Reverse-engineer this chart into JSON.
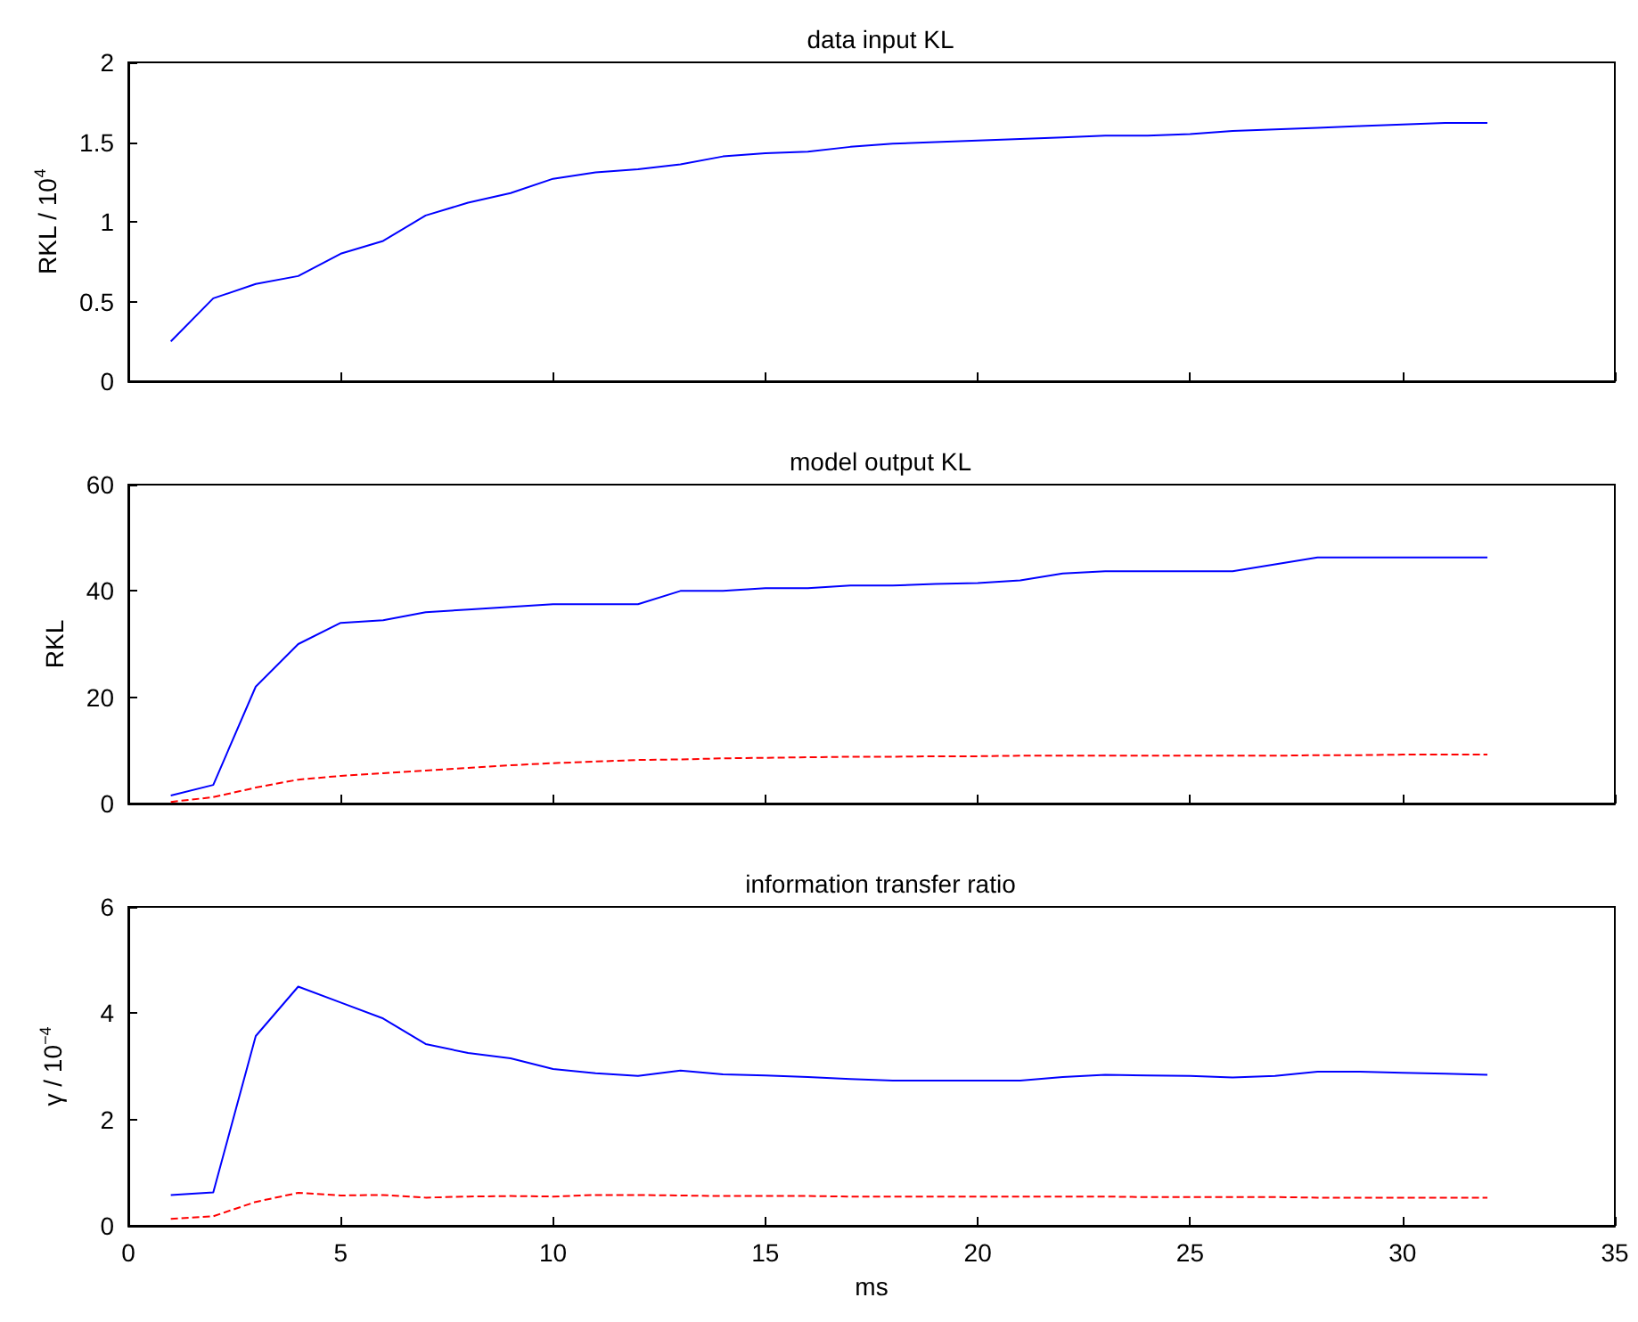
{
  "chart_data": [
    {
      "type": "line",
      "title": "data input KL",
      "ylabel": "RKL / 10$^{4}$",
      "xlim": [
        0,
        35
      ],
      "xticks": [
        0,
        5,
        10,
        15,
        20,
        25,
        30,
        35
      ],
      "ylim": [
        0,
        2
      ],
      "yticks": [
        0,
        0.5,
        1,
        1.5,
        2
      ],
      "tick_labels": "y",
      "grid": false,
      "marker": "none",
      "x": [
        1,
        2,
        3,
        4,
        5,
        6,
        7,
        8,
        9,
        10,
        11,
        12,
        13,
        14,
        15,
        16,
        17,
        18,
        19,
        20,
        21,
        22,
        23,
        24,
        25,
        26,
        27,
        28,
        29,
        30,
        31,
        32
      ],
      "series": [
        {
          "color": "#0000ff",
          "line_style": "solid",
          "values": [
            0.25,
            0.52,
            0.61,
            0.66,
            0.8,
            0.88,
            1.04,
            1.12,
            1.18,
            1.27,
            1.31,
            1.33,
            1.36,
            1.41,
            1.43,
            1.44,
            1.47,
            1.49,
            1.5,
            1.51,
            1.52,
            1.53,
            1.54,
            1.54,
            1.55,
            1.57,
            1.58,
            1.59,
            1.6,
            1.61,
            1.62,
            1.62
          ]
        }
      ]
    },
    {
      "type": "line",
      "title": "model output KL",
      "ylabel": "RKL",
      "xlim": [
        0,
        35
      ],
      "xticks": [
        0,
        5,
        10,
        15,
        20,
        25,
        30,
        35
      ],
      "ylim": [
        0,
        60
      ],
      "yticks": [
        0,
        20,
        40,
        60
      ],
      "tick_labels": "y",
      "grid": false,
      "marker": "none",
      "x": [
        1,
        2,
        3,
        4,
        5,
        6,
        7,
        8,
        9,
        10,
        11,
        12,
        13,
        14,
        15,
        16,
        17,
        18,
        19,
        20,
        21,
        22,
        23,
        24,
        25,
        26,
        27,
        28,
        29,
        30,
        31,
        32
      ],
      "series": [
        {
          "color": "#0000ff",
          "line_style": "solid",
          "values": [
            1.5,
            3.5,
            22,
            30,
            34,
            34.5,
            36,
            36.5,
            37,
            37.5,
            37.5,
            37.5,
            40,
            40,
            40.5,
            40.5,
            41,
            41,
            41.3,
            41.5,
            42,
            43.3,
            43.7,
            43.7,
            43.7,
            43.7,
            45,
            46.3,
            46.3,
            46.3,
            46.3,
            46.3
          ]
        },
        {
          "color": "#ff0000",
          "line_style": "dashed",
          "values": [
            0.3,
            1.2,
            3,
            4.5,
            5.2,
            5.7,
            6.2,
            6.7,
            7.2,
            7.6,
            7.9,
            8.2,
            8.3,
            8.5,
            8.6,
            8.7,
            8.8,
            8.8,
            8.9,
            8.9,
            9,
            9,
            9,
            9,
            9,
            9,
            9,
            9.1,
            9.1,
            9.2,
            9.2,
            9.2
          ]
        }
      ]
    },
    {
      "type": "line",
      "title": "information transfer ratio",
      "xlabel": "ms",
      "ylabel": "γ / 10$^{−4}$",
      "xlim": [
        0,
        35
      ],
      "xticks": [
        0,
        5,
        10,
        15,
        20,
        25,
        30,
        35
      ],
      "ylim": [
        0,
        6
      ],
      "yticks": [
        0,
        2,
        4,
        6
      ],
      "grid": false,
      "marker": "none",
      "x": [
        1,
        2,
        3,
        4,
        5,
        6,
        7,
        8,
        9,
        10,
        11,
        12,
        13,
        14,
        15,
        16,
        17,
        18,
        19,
        20,
        21,
        22,
        23,
        24,
        25,
        26,
        27,
        28,
        29,
        30,
        31,
        32
      ],
      "series": [
        {
          "color": "#0000ff",
          "line_style": "solid",
          "values": [
            0.58,
            0.63,
            3.57,
            4.5,
            4.2,
            3.9,
            3.42,
            3.25,
            3.15,
            2.95,
            2.87,
            2.82,
            2.92,
            2.85,
            2.83,
            2.8,
            2.76,
            2.73,
            2.73,
            2.73,
            2.73,
            2.8,
            2.84,
            2.83,
            2.82,
            2.79,
            2.82,
            2.9,
            2.9,
            2.88,
            2.86,
            2.84
          ]
        },
        {
          "color": "#ff0000",
          "line_style": "dashed",
          "values": [
            0.13,
            0.18,
            0.45,
            0.62,
            0.57,
            0.58,
            0.53,
            0.55,
            0.56,
            0.55,
            0.58,
            0.58,
            0.57,
            0.56,
            0.56,
            0.56,
            0.55,
            0.55,
            0.55,
            0.55,
            0.55,
            0.55,
            0.55,
            0.54,
            0.54,
            0.54,
            0.54,
            0.53,
            0.53,
            0.53,
            0.53,
            0.53
          ]
        }
      ]
    }
  ]
}
